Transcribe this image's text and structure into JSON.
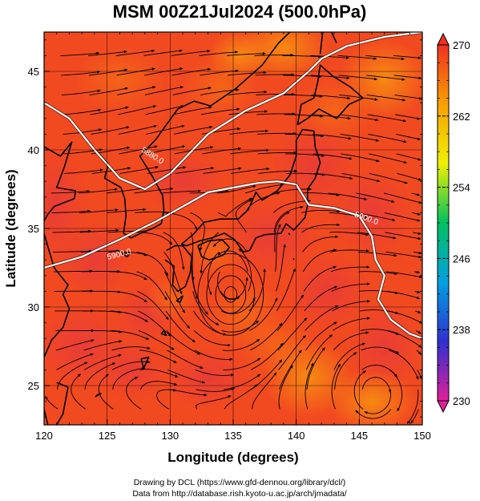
{
  "chart_data": {
    "type": "heatmap",
    "title": "MSM 00Z21Jul2024 (500.0hPa)",
    "xlabel": "Longitude (degrees)",
    "ylabel": "Latitude  (degrees)",
    "xlim": [
      120,
      150
    ],
    "ylim": [
      22.5,
      47.5
    ],
    "x_ticks": [
      "120",
      "125",
      "130",
      "135",
      "140",
      "145",
      "150"
    ],
    "y_ticks": [
      "25",
      "30",
      "35",
      "40",
      "45"
    ],
    "colorbar": {
      "min": 230,
      "max": 270,
      "tick_labels": [
        "270",
        "262",
        "254",
        "246",
        "238",
        "230"
      ],
      "colors": [
        "#e0209a",
        "#3030d0",
        "#00a0e0",
        "#00c060",
        "#f0f000",
        "#f8a000",
        "#f03020"
      ]
    },
    "contours": [
      {
        "label": "5880.0",
        "points": [
          [
            120,
            43
          ],
          [
            122,
            42
          ],
          [
            124,
            40
          ],
          [
            126,
            38.2
          ],
          [
            128,
            37.5
          ],
          [
            130,
            38.5
          ],
          [
            133,
            41
          ],
          [
            136,
            42.5
          ],
          [
            139,
            43.6
          ],
          [
            141,
            45
          ],
          [
            142,
            45.8
          ],
          [
            144,
            46.6
          ],
          [
            147,
            47.2
          ],
          [
            150,
            47.5
          ]
        ]
      },
      {
        "label": "5900.0",
        "points": [
          [
            120,
            32.5
          ],
          [
            123,
            33.2
          ],
          [
            126,
            34.3
          ],
          [
            129,
            35.5
          ],
          [
            131,
            36.4
          ],
          [
            133,
            37.3
          ],
          [
            135,
            37.6
          ],
          [
            137,
            37.9
          ],
          [
            138.5,
            38
          ],
          [
            140,
            37.8
          ],
          [
            141,
            36.5
          ],
          [
            143,
            36.3
          ],
          [
            145,
            35.8
          ],
          [
            146,
            34.5
          ],
          [
            146.3,
            33
          ],
          [
            147,
            32
          ],
          [
            146.5,
            30.5
          ],
          [
            147.5,
            29.2
          ],
          [
            149,
            28.3
          ],
          [
            150,
            28
          ]
        ]
      }
    ],
    "contour_label_positions": [
      [
        128.5,
        39.5
      ],
      [
        126,
        33.2
      ],
      [
        145.5,
        35.5
      ]
    ],
    "vortex_center": [
      134.8,
      30.8
    ],
    "field_colors": {
      "warm": "#ee3826",
      "mid": "#f45a1c",
      "cool": "#f88a10"
    }
  },
  "credits": {
    "line1": "Drawing by DCL (https://www.gfd-dennou.org/library/dcl/)",
    "line2": "Data from http://database.rish.kyoto-u.ac.jp/arch/jmadata/"
  }
}
